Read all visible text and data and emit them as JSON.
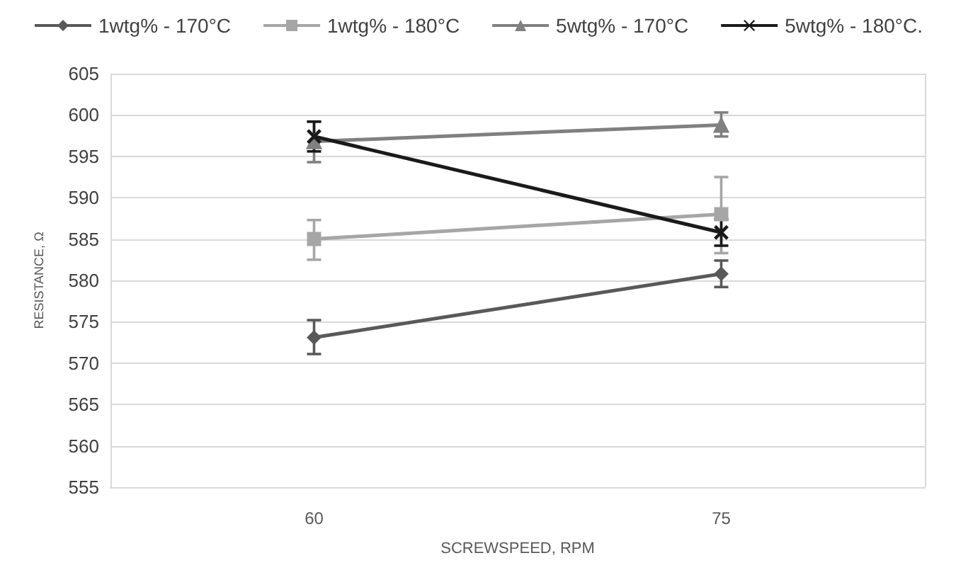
{
  "chart_data": {
    "type": "line",
    "xlabel": "SCREWSPEED, RPM",
    "ylabel": "RESISTANCE, Ω",
    "categories": [
      "60",
      "75"
    ],
    "series": [
      {
        "name": "1wtg% - 170°C",
        "color": "#595959",
        "marker": "diamond",
        "values": [
          573.1,
          580.8
        ],
        "errors": [
          [
            571.1,
            575.2
          ],
          [
            579.2,
            582.4
          ]
        ]
      },
      {
        "name": "1wtg% - 180°C",
        "color": "#a6a6a6",
        "marker": "square",
        "values": [
          585,
          588
        ],
        "errors": [
          [
            582.5,
            587.3
          ],
          [
            583.3,
            592.5
          ]
        ]
      },
      {
        "name": "5wtg% - 170°C",
        "color": "#808080",
        "marker": "triangle",
        "values": [
          596.8,
          598.8
        ],
        "errors": [
          [
            594.3,
            599.2
          ],
          [
            597.4,
            600.3
          ]
        ]
      },
      {
        "name": "5wtg% - 180°C.",
        "color": "#1a1a1a",
        "marker": "cross",
        "values": [
          597.4,
          585.8
        ],
        "errors": [
          [
            595.6,
            599.2
          ],
          [
            584.2,
            587.4
          ]
        ]
      }
    ],
    "ylim": [
      555,
      605
    ],
    "yticks": [
      555,
      560,
      565,
      570,
      575,
      580,
      585,
      590,
      595,
      600,
      605
    ],
    "grid": true,
    "legend": "top",
    "line_style": "solid"
  }
}
